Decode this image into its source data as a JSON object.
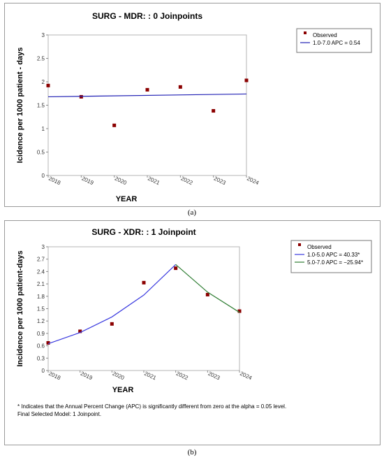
{
  "charts": [
    {
      "caption": "(a)",
      "chart_data": {
        "type": "scatter",
        "title": "SURG - MDR: : 0 Joinpoints",
        "xlabel": "YEAR",
        "ylabel": "Icidence per 1000 patient - days",
        "xlim": [
          2018,
          2024
        ],
        "ylim": [
          0,
          3
        ],
        "x_ticks": [
          "2018",
          "2019",
          "2020",
          "2021",
          "2022",
          "2023",
          "2024"
        ],
        "y_ticks": [
          "0",
          "0.5",
          "1",
          "1.5",
          "2",
          "2.5",
          "3"
        ],
        "legend_position": "top-right",
        "series": [
          {
            "name": "Observed",
            "kind": "points",
            "color": "#8b0000",
            "x": [
              2018,
              2019,
              2020,
              2021,
              2022,
              2023,
              2024
            ],
            "y": [
              1.92,
              1.68,
              1.07,
              1.83,
              1.89,
              1.38,
              2.03
            ]
          },
          {
            "name": "1.0-7.0 APC = 0.54",
            "kind": "line",
            "color": "#1f1fb4",
            "x": [
              2018,
              2024
            ],
            "y": [
              1.68,
              1.74
            ]
          }
        ]
      }
    },
    {
      "caption": "(b)",
      "footnotes": [
        "* Indicates that the Annual Percent Change (APC) is significantly different from zero at the alpha = 0.05 level.",
        "Final Selected Model: 1 Joinpoint."
      ],
      "chart_data": {
        "type": "scatter",
        "title": "SURG - XDR: : 1 Joinpoint",
        "xlabel": "YEAR",
        "ylabel": "Incidence per 1000 patient-days",
        "xlim": [
          2018,
          2024
        ],
        "ylim": [
          0,
          3
        ],
        "x_ticks": [
          "2018",
          "2019",
          "2020",
          "2021",
          "2022",
          "2023",
          "2024"
        ],
        "y_ticks": [
          "0",
          "0.3",
          "0.6",
          "0.9",
          "1.2",
          "1.5",
          "1.8",
          "2.1",
          "2.4",
          "2.7",
          "3"
        ],
        "legend_position": "top-right",
        "series": [
          {
            "name": "Observed",
            "kind": "points",
            "color": "#8b0000",
            "x": [
              2018,
              2019,
              2020,
              2021,
              2022,
              2023,
              2024
            ],
            "y": [
              0.67,
              0.95,
              1.13,
              2.13,
              2.48,
              1.84,
              1.44
            ]
          },
          {
            "name": "1.0-5.0 APC = 40.33*",
            "kind": "line",
            "color": "#3a3adf",
            "x": [
              2018,
              2019,
              2020,
              2021,
              2022
            ],
            "y": [
              0.65,
              0.92,
              1.3,
              1.83,
              2.57
            ]
          },
          {
            "name": "5.0-7.0 APC = −25.94*",
            "kind": "line",
            "color": "#2e7d32",
            "x": [
              2022,
              2023,
              2024
            ],
            "y": [
              2.57,
              1.9,
              1.41
            ]
          }
        ]
      }
    }
  ]
}
